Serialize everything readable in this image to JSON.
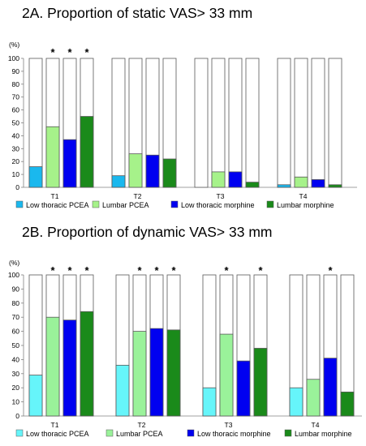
{
  "chart_data": [
    {
      "type": "bar",
      "title": "2A. Proportion of static VAS> 33 mm",
      "unit_label": "(%)",
      "ylim": [
        0,
        100
      ],
      "yticks": [
        0,
        10,
        20,
        30,
        40,
        50,
        60,
        70,
        80,
        90,
        100
      ],
      "grid": false,
      "legend_position": "bottom",
      "categories": [
        "T1",
        "T2",
        "T3",
        "T4"
      ],
      "series": [
        {
          "name": "Low thoracic PCEA",
          "color": "#1AB8EE",
          "values": [
            16,
            9,
            0,
            2
          ],
          "significant": [
            false,
            false,
            false,
            false
          ]
        },
        {
          "name": "Lumbar PCEA",
          "color": "#A6F28A",
          "values": [
            47,
            26,
            12,
            8
          ],
          "significant": [
            true,
            false,
            false,
            false
          ]
        },
        {
          "name": "Low thoracic morphine",
          "color": "#0000F0",
          "values": [
            37,
            25,
            12,
            6
          ],
          "significant": [
            true,
            false,
            false,
            false
          ]
        },
        {
          "name": "Lumbar morphine",
          "color": "#1A8A1A",
          "values": [
            55,
            22,
            4,
            2
          ],
          "significant": [
            true,
            false,
            false,
            false
          ]
        }
      ],
      "marker_symbol": "*"
    },
    {
      "type": "bar",
      "title": "2B. Proportion of dynamic VAS> 33 mm",
      "unit_label": "(%)",
      "ylim": [
        0,
        100
      ],
      "yticks": [
        0,
        10,
        20,
        30,
        40,
        50,
        60,
        70,
        80,
        90,
        100
      ],
      "grid": false,
      "legend_position": "bottom",
      "categories": [
        "T1",
        "T2",
        "T3",
        "T4"
      ],
      "series": [
        {
          "name": "Low thoracic PCEA",
          "color": "#66F5FA",
          "values": [
            29,
            36,
            20,
            20
          ],
          "significant": [
            false,
            false,
            false,
            false
          ]
        },
        {
          "name": "Lumbar PCEA",
          "color": "#9AF29A",
          "values": [
            70,
            60,
            58,
            26
          ],
          "significant": [
            true,
            true,
            true,
            false
          ]
        },
        {
          "name": "Low thoracic morphine",
          "color": "#0000F0",
          "values": [
            68,
            62,
            39,
            41
          ],
          "significant": [
            true,
            true,
            false,
            true
          ]
        },
        {
          "name": "Lumbar morphine",
          "color": "#1A8A1A",
          "values": [
            74,
            61,
            48,
            17
          ],
          "significant": [
            true,
            true,
            true,
            false
          ]
        }
      ],
      "marker_symbol": "*"
    }
  ]
}
